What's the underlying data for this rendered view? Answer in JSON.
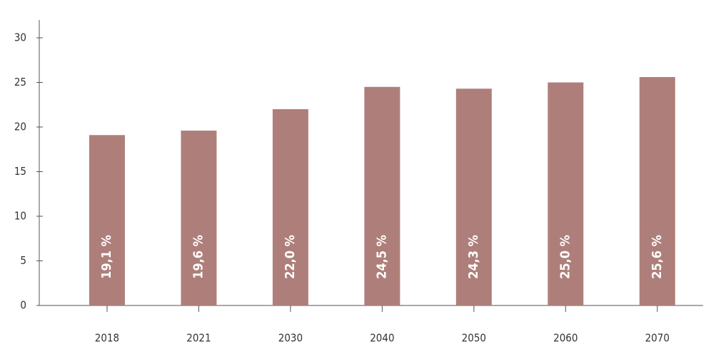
{
  "chart_data": {
    "type": "bar",
    "categories": [
      "2018",
      "2021",
      "2030",
      "2040",
      "2050",
      "2060",
      "2070"
    ],
    "values": [
      19.1,
      19.6,
      22.0,
      24.5,
      24.3,
      25.0,
      25.6
    ],
    "value_labels": [
      "19,1 %",
      "19,6 %",
      "22,0 %",
      "24,5 %",
      "24,3 %",
      "25,0 %",
      "25,6 %"
    ],
    "color": "#ae7f7a",
    "ylim": [
      0,
      32
    ],
    "yticks": [
      0,
      5,
      10,
      15,
      20,
      25,
      30
    ],
    "grid": false
  }
}
